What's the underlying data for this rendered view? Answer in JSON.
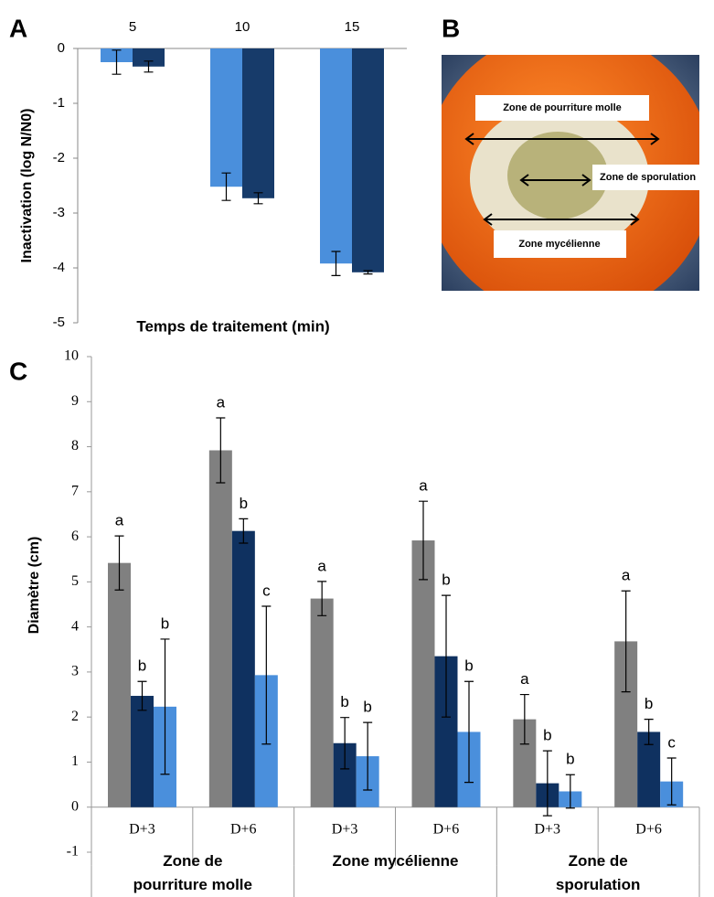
{
  "chart_data": [
    {
      "type": "bar",
      "panel_label": "A",
      "x_label": "Temps de traitement (min)",
      "y_label": "Inactivation (log N/N0)",
      "categories": [
        "5",
        "10",
        "15"
      ],
      "series": [
        {
          "color": "#4a8fdc",
          "values": [
            -0.25,
            -2.52,
            -3.92
          ],
          "errors": [
            0.22,
            0.25,
            0.22
          ]
        },
        {
          "color": "#173b6a",
          "values": [
            -0.33,
            -2.73,
            -4.08
          ],
          "errors": [
            0.1,
            0.1,
            0.03
          ]
        }
      ],
      "ylim": [
        -5,
        0
      ],
      "yticks": [
        0,
        -1,
        -2,
        -3,
        -4,
        -5
      ]
    },
    {
      "type": "bar",
      "panel_label": "C",
      "y_label": "Diamètre (cm)",
      "categories": [
        "D+3",
        "D+6",
        "D+3",
        "D+6",
        "D+3",
        "D+6"
      ],
      "groups": [
        "Zone de pourriture molle",
        "Zone mycélienne",
        "Zone de sporulation"
      ],
      "series": [
        {
          "color": "#808080",
          "values": [
            5.42,
            7.92,
            4.63,
            5.92,
            1.95,
            3.68
          ],
          "errors": [
            0.6,
            0.72,
            0.38,
            0.87,
            0.55,
            1.12
          ],
          "letters": [
            "a",
            "a",
            "a",
            "a",
            "a",
            "a"
          ]
        },
        {
          "color": "#0f3160",
          "values": [
            2.47,
            6.13,
            1.42,
            3.35,
            0.53,
            1.67
          ],
          "errors": [
            0.32,
            0.27,
            0.57,
            1.35,
            0.72,
            0.28
          ],
          "letters": [
            "b",
            "b",
            "b",
            "b",
            "b",
            "b"
          ]
        },
        {
          "color": "#4a8fdc",
          "values": [
            2.23,
            2.93,
            1.13,
            1.67,
            0.35,
            0.57
          ],
          "errors": [
            1.5,
            1.53,
            0.75,
            1.12,
            0.37,
            0.52
          ],
          "letters": [
            "b",
            "c",
            "b",
            "b",
            "b",
            "c"
          ]
        }
      ],
      "ylim": [
        -1,
        10
      ],
      "yticks": [
        -1,
        0,
        1,
        2,
        3,
        4,
        5,
        6,
        7,
        8,
        9,
        10
      ]
    }
  ],
  "photo": {
    "panel_label": "B",
    "labels": [
      "Zone de pourriture molle",
      "Zone de sporulation",
      "Zone mycélienne"
    ]
  }
}
